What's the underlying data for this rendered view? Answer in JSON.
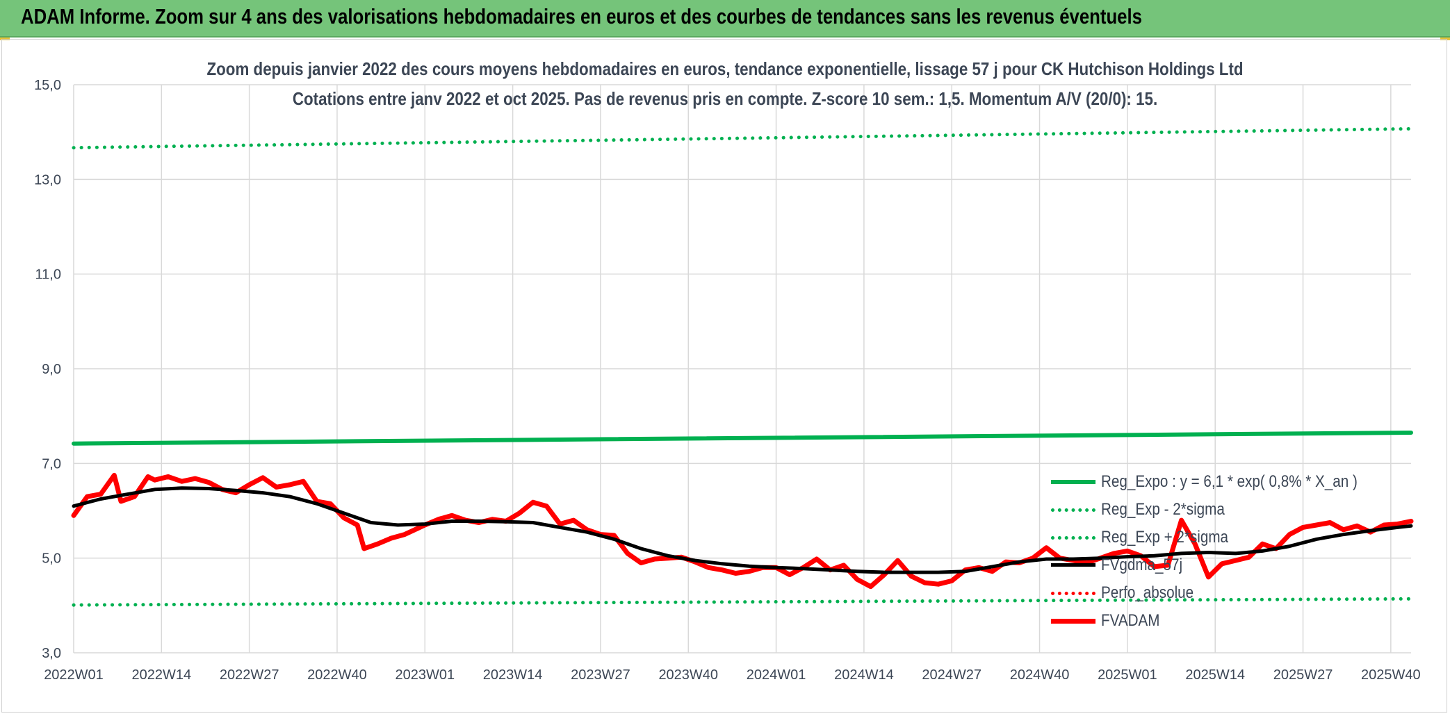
{
  "banner": {
    "text": "ADAM Informe. Zoom sur 4 ans des valorisations hebdomadaires en euros et des courbes de tendances sans les revenus éventuels"
  },
  "chart_data": {
    "type": "line",
    "title": "Zoom depuis janvier 2022 des cours moyens hebdomadaires en euros, tendance exponentielle, lissage 57 j pour CK Hutchison Holdings Ltd",
    "subtitle": "Cotations entre janv 2022 et oct 2025. Pas de revenus pris en compte. Z-score 10 sem.: 1,5. Momentum A/V (20/0): 15.",
    "xlabel": "",
    "ylabel": "",
    "ylim": [
      3.0,
      15.0
    ],
    "yticks": [
      "15,0",
      "13,0",
      "11,0",
      "9,0",
      "7,0",
      "5,0",
      "3,0"
    ],
    "grid": true,
    "legend_position": "bottom-right",
    "x_range": [
      "2022W01",
      "2025W43"
    ],
    "x_tick_labels": [
      "2022W01",
      "2022W14",
      "2022W27",
      "2022W40",
      "2023W01",
      "2023W14",
      "2023W27",
      "2023W40",
      "2024W01",
      "2024W14",
      "2024W27",
      "2024W40",
      "2025W01",
      "2025W14",
      "2025W27",
      "2025W40"
    ],
    "series": [
      {
        "name": "Reg_Expo : y = 6,1 * exp( 0,8% *  X_an )",
        "color": "#00b050",
        "style": "solid",
        "x": [
          "2022W01",
          "2025W43"
        ],
        "values": [
          7.42,
          7.65
        ]
      },
      {
        "name": "Reg_Exp - 2*sigma",
        "color": "#00b050",
        "style": "dotted",
        "x": [
          "2022W01",
          "2025W43"
        ],
        "values": [
          4.01,
          4.14
        ]
      },
      {
        "name": "Reg_Exp + 2*sigma",
        "color": "#00b050",
        "style": "dotted",
        "x": [
          "2022W01",
          "2025W43"
        ],
        "values": [
          13.67,
          14.07
        ]
      },
      {
        "name": "FVgdma_57j",
        "color": "#000000",
        "style": "solid",
        "x": [
          "2022W01",
          "2022W05",
          "2022W09",
          "2022W13",
          "2022W17",
          "2022W21",
          "2022W25",
          "2022W29",
          "2022W33",
          "2022W37",
          "2022W41",
          "2022W45",
          "2022W49",
          "2023W01",
          "2023W05",
          "2023W09",
          "2023W13",
          "2023W17",
          "2023W21",
          "2023W25",
          "2023W29",
          "2023W33",
          "2023W37",
          "2023W41",
          "2023W45",
          "2023W49",
          "2024W01",
          "2024W05",
          "2024W09",
          "2024W13",
          "2024W17",
          "2024W21",
          "2024W25",
          "2024W29",
          "2024W33",
          "2024W37",
          "2024W41",
          "2024W45",
          "2024W49",
          "2025W01",
          "2025W05",
          "2025W09",
          "2025W13",
          "2025W17",
          "2025W21",
          "2025W25",
          "2025W29",
          "2025W33",
          "2025W37",
          "2025W41",
          "2025W43"
        ],
        "values": [
          6.1,
          6.25,
          6.35,
          6.45,
          6.48,
          6.47,
          6.43,
          6.38,
          6.3,
          6.15,
          5.95,
          5.75,
          5.7,
          5.72,
          5.78,
          5.78,
          5.77,
          5.75,
          5.65,
          5.55,
          5.4,
          5.2,
          5.05,
          4.95,
          4.88,
          4.83,
          4.8,
          4.78,
          4.75,
          4.72,
          4.7,
          4.7,
          4.7,
          4.72,
          4.82,
          4.92,
          4.98,
          4.98,
          5.0,
          5.03,
          5.05,
          5.1,
          5.12,
          5.1,
          5.15,
          5.25,
          5.4,
          5.5,
          5.58,
          5.65,
          5.68
        ]
      },
      {
        "name": "Perfo_absolue",
        "color": "#ff0000",
        "style": "dotted",
        "x": [],
        "values": []
      },
      {
        "name": "FVADAM",
        "color": "#ff0000",
        "style": "solid",
        "x": [
          "2022W01",
          "2022W03",
          "2022W05",
          "2022W07",
          "2022W08",
          "2022W10",
          "2022W12",
          "2022W13",
          "2022W15",
          "2022W17",
          "2022W19",
          "2022W21",
          "2022W23",
          "2022W25",
          "2022W27",
          "2022W29",
          "2022W31",
          "2022W33",
          "2022W35",
          "2022W37",
          "2022W39",
          "2022W41",
          "2022W43",
          "2022W44",
          "2022W46",
          "2022W48",
          "2022W50",
          "2023W01",
          "2023W03",
          "2023W05",
          "2023W07",
          "2023W09",
          "2023W11",
          "2023W13",
          "2023W15",
          "2023W17",
          "2023W19",
          "2023W21",
          "2023W23",
          "2023W25",
          "2023W27",
          "2023W29",
          "2023W31",
          "2023W33",
          "2023W35",
          "2023W37",
          "2023W39",
          "2023W41",
          "2023W43",
          "2023W45",
          "2023W47",
          "2023W49",
          "2023W51",
          "2024W01",
          "2024W03",
          "2024W05",
          "2024W07",
          "2024W09",
          "2024W11",
          "2024W13",
          "2024W15",
          "2024W17",
          "2024W19",
          "2024W21",
          "2024W23",
          "2024W25",
          "2024W27",
          "2024W29",
          "2024W31",
          "2024W33",
          "2024W35",
          "2024W37",
          "2024W39",
          "2024W41",
          "2024W43",
          "2024W45",
          "2024W47",
          "2024W49",
          "2024W51",
          "2025W01",
          "2025W03",
          "2025W05",
          "2025W07",
          "2025W09",
          "2025W11",
          "2025W13",
          "2025W15",
          "2025W17",
          "2025W19",
          "2025W21",
          "2025W23",
          "2025W25",
          "2025W27",
          "2025W29",
          "2025W31",
          "2025W33",
          "2025W35",
          "2025W37",
          "2025W39",
          "2025W41",
          "2025W43"
        ],
        "values": [
          5.9,
          6.3,
          6.35,
          6.75,
          6.2,
          6.3,
          6.72,
          6.65,
          6.72,
          6.62,
          6.68,
          6.6,
          6.45,
          6.38,
          6.55,
          6.7,
          6.5,
          6.55,
          6.62,
          6.2,
          6.15,
          5.85,
          5.7,
          5.2,
          5.3,
          5.42,
          5.5,
          5.7,
          5.82,
          5.9,
          5.8,
          5.75,
          5.82,
          5.78,
          5.95,
          6.18,
          6.1,
          5.72,
          5.8,
          5.6,
          5.5,
          5.48,
          5.1,
          4.9,
          4.98,
          5.0,
          5.02,
          4.92,
          4.8,
          4.75,
          4.68,
          4.72,
          4.8,
          4.8,
          4.65,
          4.8,
          4.98,
          4.75,
          4.85,
          4.55,
          4.4,
          4.65,
          4.95,
          4.62,
          4.48,
          4.45,
          4.52,
          4.75,
          4.8,
          4.72,
          4.92,
          4.9,
          5.0,
          5.22,
          5.0,
          4.95,
          4.9,
          5.0,
          5.1,
          5.15,
          5.05,
          4.82,
          4.85,
          5.8,
          5.3,
          4.6,
          4.88,
          4.95,
          5.02,
          5.3,
          5.2,
          5.5,
          5.65,
          5.7,
          5.75,
          5.6,
          5.68,
          5.55,
          5.7,
          5.72,
          5.78
        ]
      }
    ]
  }
}
